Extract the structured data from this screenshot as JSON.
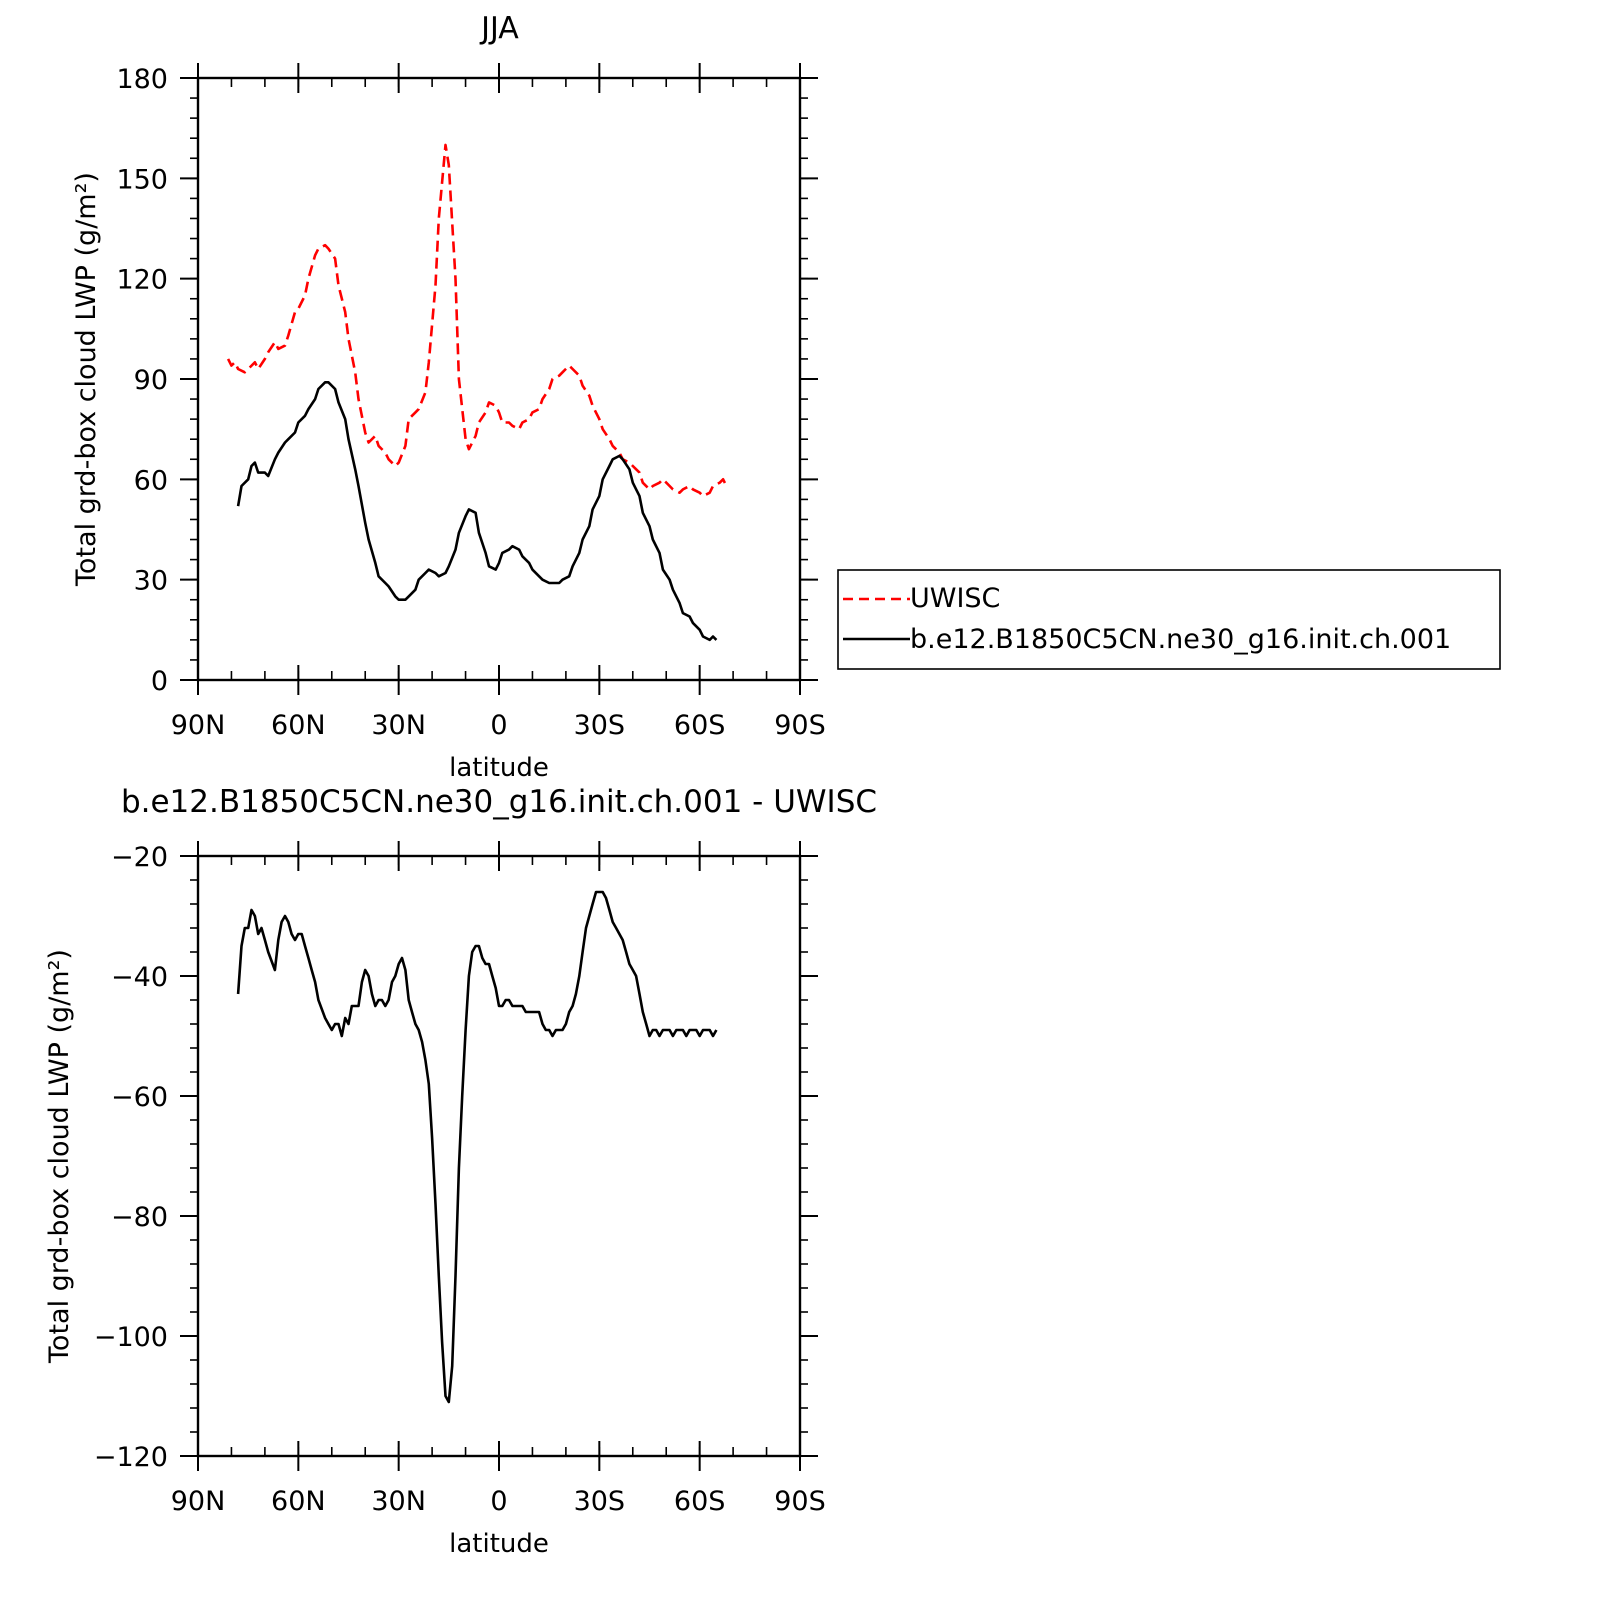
{
  "chart_data": [
    {
      "type": "line",
      "title": "JJA",
      "xlabel": "latitude",
      "ylabel": "Total grd-box cloud LWP (g/m²)",
      "xlim": [
        90,
        -90
      ],
      "ylim": [
        0,
        180
      ],
      "x_ticks": [
        90,
        60,
        30,
        0,
        -30,
        -60,
        -90
      ],
      "x_tick_labels": [
        "90N",
        "60N",
        "30N",
        "0",
        "30S",
        "60S",
        "90S"
      ],
      "y_ticks": [
        0,
        30,
        60,
        90,
        120,
        150,
        180
      ],
      "y_tick_labels": [
        "0",
        "30",
        "60",
        "90",
        "120",
        "150",
        "180"
      ],
      "legend_position": "right",
      "series": [
        {
          "name": "UWISC",
          "color": "#ff0000",
          "style": "dashed",
          "x": [
            81,
            80,
            79,
            78,
            76,
            75,
            73,
            72,
            70,
            69,
            67,
            66,
            64,
            63,
            61,
            60,
            58,
            57,
            55,
            54,
            52,
            51,
            49,
            48,
            46,
            45,
            43,
            42,
            40,
            39,
            37,
            36,
            34,
            33,
            31,
            30,
            28,
            27,
            25,
            24,
            22,
            21,
            19,
            18,
            16,
            15,
            13,
            12,
            10,
            9,
            7,
            6,
            4,
            3,
            1,
            0,
            -1,
            -3,
            -4,
            -6,
            -7,
            -9,
            -10,
            -12,
            -13,
            -15,
            -16,
            -18,
            -19,
            -21,
            -22,
            -24,
            -25,
            -27,
            -28,
            -30,
            -31,
            -33,
            -34,
            -36,
            -37,
            -39,
            -40,
            -42,
            -43,
            -45,
            -46,
            -48,
            -49,
            -51,
            -52,
            -54,
            -55,
            -57,
            -58,
            -60,
            -61,
            -63,
            -64,
            -66,
            -67,
            -68
          ],
          "y": [
            96,
            94,
            95,
            93,
            92,
            93,
            95,
            93,
            96,
            98,
            101,
            99,
            100,
            103,
            110,
            111,
            115,
            120,
            127,
            129,
            130,
            129,
            126,
            118,
            110,
            102,
            92,
            84,
            74,
            71,
            73,
            70,
            68,
            66,
            64,
            65,
            70,
            78,
            80,
            81,
            86,
            95,
            118,
            138,
            160,
            154,
            120,
            90,
            72,
            69,
            73,
            77,
            80,
            83,
            82,
            80,
            77,
            77,
            76,
            75,
            77,
            78,
            80,
            81,
            84,
            87,
            90,
            91,
            92,
            94,
            93,
            91,
            88,
            85,
            82,
            78,
            75,
            72,
            70,
            68,
            66,
            65,
            64,
            62,
            59,
            57,
            58,
            59,
            60,
            58,
            57,
            56,
            57,
            58,
            57,
            56,
            55,
            56,
            58,
            59,
            60,
            58
          ]
        },
        {
          "name": "b.e12.B1850C5CN.ne30_g16.init.ch.001",
          "color": "#000000",
          "style": "solid",
          "x": [
            78,
            77,
            75,
            74,
            73,
            72,
            70,
            69,
            67,
            66,
            64,
            63,
            61,
            60,
            58,
            57,
            55,
            54,
            52,
            51,
            49,
            48,
            46,
            45,
            43,
            42,
            40,
            39,
            37,
            36,
            34,
            33,
            31,
            30,
            28,
            27,
            25,
            24,
            22,
            21,
            19,
            18,
            16,
            15,
            13,
            12,
            10,
            9,
            7,
            6,
            4,
            3,
            1,
            0,
            -1,
            -3,
            -4,
            -6,
            -7,
            -9,
            -10,
            -12,
            -13,
            -15,
            -16,
            -18,
            -19,
            -21,
            -22,
            -24,
            -25,
            -27,
            -28,
            -30,
            -31,
            -33,
            -34,
            -36,
            -37,
            -39,
            -40,
            -42,
            -43,
            -45,
            -46,
            -48,
            -49,
            -51,
            -52,
            -54,
            -55,
            -57,
            -58,
            -60,
            -61,
            -63,
            -64,
            -65
          ],
          "y": [
            52,
            58,
            60,
            64,
            65,
            62,
            62,
            61,
            66,
            68,
            71,
            72,
            74,
            77,
            79,
            81,
            84,
            87,
            89,
            89,
            87,
            83,
            78,
            72,
            63,
            58,
            47,
            42,
            35,
            31,
            29,
            28,
            25,
            24,
            24,
            25,
            27,
            30,
            32,
            33,
            32,
            31,
            32,
            34,
            39,
            44,
            49,
            51,
            50,
            44,
            38,
            34,
            33,
            35,
            38,
            39,
            40,
            39,
            37,
            35,
            33,
            31,
            30,
            29,
            29,
            29,
            30,
            31,
            34,
            38,
            42,
            46,
            51,
            55,
            60,
            64,
            66,
            67,
            66,
            63,
            59,
            55,
            50,
            46,
            42,
            38,
            33,
            30,
            27,
            23,
            20,
            19,
            17,
            15,
            13,
            12,
            13,
            12
          ]
        }
      ]
    },
    {
      "type": "line",
      "title": "b.e12.B1850C5CN.ne30_g16.init.ch.001 - UWISC",
      "xlabel": "latitude",
      "ylabel": "Total grd-box cloud LWP (g/m²)",
      "xlim": [
        90,
        -90
      ],
      "ylim": [
        -120,
        -20
      ],
      "x_ticks": [
        90,
        60,
        30,
        0,
        -30,
        -60,
        -90
      ],
      "x_tick_labels": [
        "90N",
        "60N",
        "30N",
        "0",
        "30S",
        "60S",
        "90S"
      ],
      "y_ticks": [
        -120,
        -100,
        -80,
        -60,
        -40,
        -20
      ],
      "y_tick_labels": [
        "−120",
        "−100",
        "−80",
        "−60",
        "−40",
        "−20"
      ],
      "series": [
        {
          "color": "#000000",
          "style": "solid",
          "x": [
            78,
            77,
            76,
            75,
            74,
            73,
            72,
            71,
            70,
            69,
            67,
            66,
            65,
            64,
            63,
            62,
            61,
            60,
            59,
            58,
            57,
            56,
            55,
            54,
            52,
            51,
            50,
            49,
            48,
            47,
            46,
            45,
            44,
            43,
            42,
            41,
            40,
            39,
            38,
            37,
            36,
            35,
            34,
            33,
            32,
            31,
            30,
            29,
            28,
            27,
            26,
            25,
            24,
            23,
            22,
            21,
            20,
            19,
            18,
            17,
            16,
            15,
            14,
            13,
            12,
            11,
            10,
            9,
            8,
            7,
            6,
            5,
            4,
            3,
            2,
            1,
            0,
            -1,
            -2,
            -3,
            -4,
            -5,
            -6,
            -7,
            -8,
            -9,
            -10,
            -11,
            -12,
            -13,
            -14,
            -15,
            -16,
            -17,
            -18,
            -19,
            -20,
            -21,
            -22,
            -23,
            -24,
            -25,
            -26,
            -27,
            -28,
            -29,
            -30,
            -31,
            -32,
            -33,
            -34,
            -35,
            -36,
            -37,
            -38,
            -39,
            -40,
            -41,
            -42,
            -43,
            -44,
            -45,
            -46,
            -47,
            -48,
            -49,
            -50,
            -51,
            -52,
            -53,
            -54,
            -55,
            -56,
            -57,
            -58,
            -59,
            -60,
            -61,
            -62,
            -63,
            -64,
            -65
          ],
          "y": [
            -43,
            -35,
            -32,
            -32,
            -29,
            -30,
            -33,
            -32,
            -34,
            -36,
            -39,
            -34,
            -31,
            -30,
            -31,
            -33,
            -34,
            -33,
            -33,
            -35,
            -37,
            -39,
            -41,
            -44,
            -47,
            -48,
            -49,
            -48,
            -48,
            -50,
            -47,
            -48,
            -45,
            -45,
            -45,
            -41,
            -39,
            -40,
            -43,
            -45,
            -44,
            -44,
            -45,
            -44,
            -41,
            -40,
            -38,
            -37,
            -39,
            -44,
            -46,
            -48,
            -49,
            -51,
            -54,
            -58,
            -67,
            -78,
            -90,
            -101,
            -110,
            -111,
            -105,
            -90,
            -72,
            -60,
            -49,
            -40,
            -36,
            -35,
            -35,
            -37,
            -38,
            -38,
            -40,
            -42,
            -45,
            -45,
            -44,
            -44,
            -45,
            -45,
            -45,
            -45,
            -46,
            -46,
            -46,
            -46,
            -46,
            -48,
            -49,
            -49,
            -50,
            -49,
            -49,
            -49,
            -48,
            -46,
            -45,
            -43,
            -40,
            -36,
            -32,
            -30,
            -28,
            -26,
            -26,
            -26,
            -27,
            -29,
            -31,
            -32,
            -33,
            -34,
            -36,
            -38,
            -39,
            -40,
            -43,
            -46,
            -48,
            -50,
            -49,
            -49,
            -50,
            -49,
            -49,
            -49,
            -50,
            -49,
            -49,
            -49,
            -50,
            -49,
            -49,
            -49,
            -50,
            -49,
            -49,
            -49,
            -50,
            -49
          ]
        }
      ]
    }
  ]
}
